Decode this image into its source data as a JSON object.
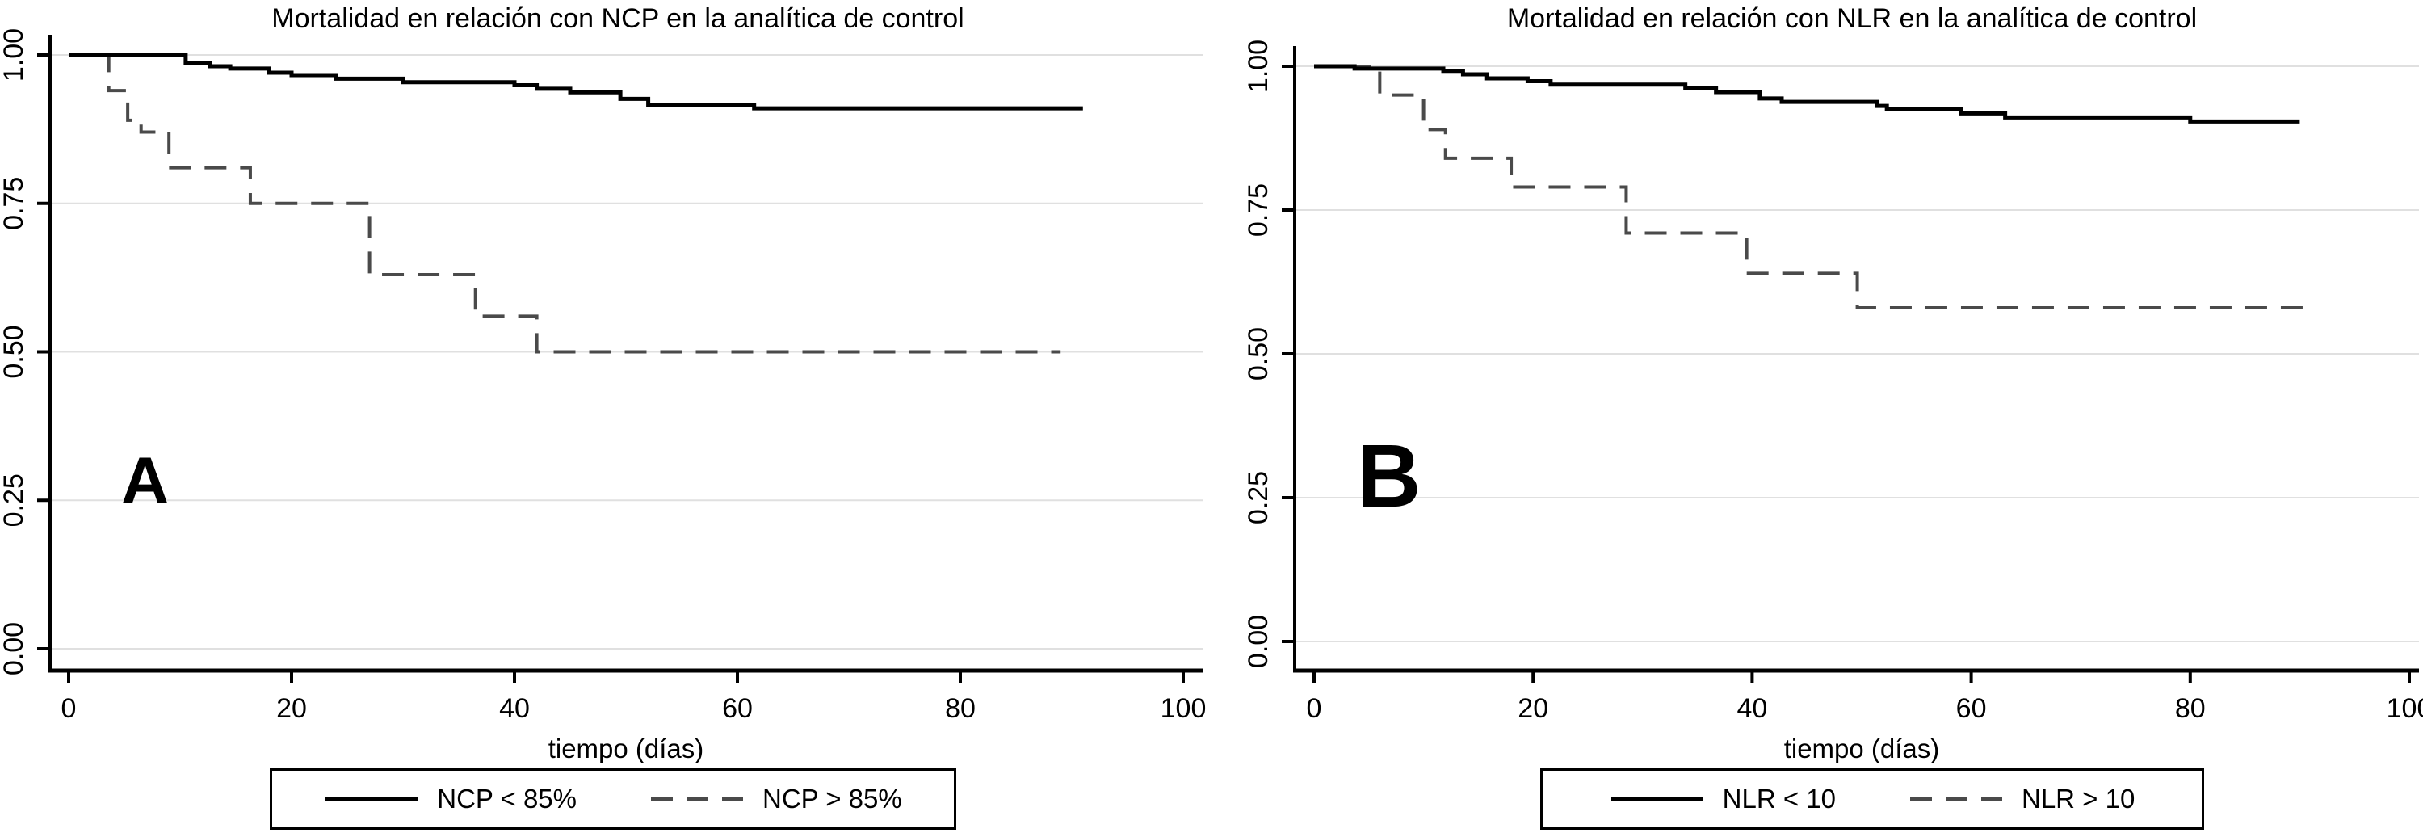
{
  "chart_data": [
    {
      "type": "line",
      "subtype": "kaplan-meier-step",
      "panel_label": "A",
      "title": "Mortalidad en relación con NCP en la analítica de control",
      "xlabel": "tiempo (días)",
      "x_ticks": [
        0,
        20,
        40,
        60,
        80,
        100
      ],
      "y_tick_labels": [
        "0.00",
        "0.25",
        "0.50",
        "0.75",
        "1.00"
      ],
      "y_tick_values": [
        0,
        0.25,
        0.5,
        0.75,
        1
      ],
      "xlim": [
        0,
        100
      ],
      "ylim": [
        0,
        1
      ],
      "grid": true,
      "grid_color": "#e0e0e0",
      "legend_position": "bottom",
      "series": [
        {
          "name": "NCP < 85%",
          "style": "solid",
          "color": "#000000",
          "end_x": 91,
          "steps": [
            [
              0,
              1.0
            ],
            [
              10.5,
              0.986
            ],
            [
              12.7,
              0.981
            ],
            [
              14.5,
              0.977
            ],
            [
              18,
              0.97
            ],
            [
              20,
              0.966
            ],
            [
              24,
              0.96
            ],
            [
              30,
              0.954
            ],
            [
              40,
              0.949
            ],
            [
              42,
              0.943
            ],
            [
              45,
              0.937
            ],
            [
              49.5,
              0.926
            ],
            [
              52,
              0.915
            ],
            [
              61.5,
              0.91
            ]
          ]
        },
        {
          "name": "NCP > 85%",
          "style": "dashed",
          "color": "#4a4a4a",
          "end_x": 89,
          "steps": [
            [
              0,
              1.0
            ],
            [
              3.6,
              0.94
            ],
            [
              5.3,
              0.89
            ],
            [
              6.5,
              0.87
            ],
            [
              9,
              0.81
            ],
            [
              16.3,
              0.75
            ],
            [
              27,
              0.63
            ],
            [
              36.5,
              0.56
            ],
            [
              42,
              0.5
            ]
          ]
        }
      ]
    },
    {
      "type": "line",
      "subtype": "kaplan-meier-step",
      "panel_label": "B",
      "title": "Mortalidad en relación con NLR en la analítica de control",
      "xlabel": "tiempo (días)",
      "x_ticks": [
        0,
        20,
        40,
        60,
        80,
        100
      ],
      "y_tick_labels": [
        "0.00",
        "0.25",
        "0.50",
        "0.75",
        "1.00"
      ],
      "y_tick_values": [
        0,
        0.25,
        0.5,
        0.75,
        1
      ],
      "xlim": [
        0,
        100
      ],
      "ylim": [
        0,
        1
      ],
      "grid": true,
      "grid_color": "#e0e0e0",
      "legend_position": "bottom",
      "series": [
        {
          "name": "NLR < 10",
          "style": "solid",
          "color": "#000000",
          "end_x": 90,
          "steps": [
            [
              0,
              1.0
            ],
            [
              3.7,
              0.996
            ],
            [
              11.8,
              0.992
            ],
            [
              13.6,
              0.986
            ],
            [
              15.8,
              0.979
            ],
            [
              19.5,
              0.974
            ],
            [
              21.6,
              0.968
            ],
            [
              33.9,
              0.962
            ],
            [
              36.7,
              0.955
            ],
            [
              40.7,
              0.944
            ],
            [
              42.7,
              0.938
            ],
            [
              51.4,
              0.931
            ],
            [
              52.3,
              0.925
            ],
            [
              59.1,
              0.918
            ],
            [
              63.1,
              0.911
            ],
            [
              80,
              0.904
            ]
          ]
        },
        {
          "name": "NLR > 10",
          "style": "dashed",
          "color": "#4a4a4a",
          "end_x": 91,
          "steps": [
            [
              0,
              1.0
            ],
            [
              6,
              0.95
            ],
            [
              10,
              0.89
            ],
            [
              12,
              0.84
            ],
            [
              18,
              0.79
            ],
            [
              28.5,
              0.71
            ],
            [
              39.5,
              0.64
            ],
            [
              49.6,
              0.58
            ]
          ]
        }
      ]
    }
  ]
}
